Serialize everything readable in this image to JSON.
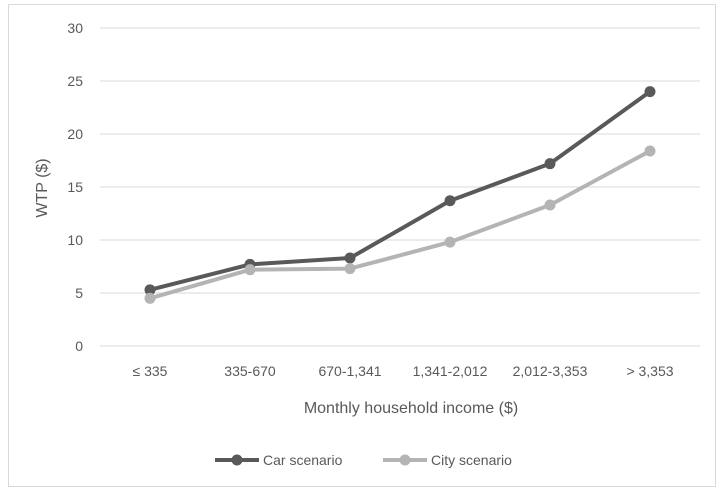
{
  "chart_data": {
    "type": "line",
    "title": "",
    "xlabel": "Monthly household income ($)",
    "ylabel": "WTP ($)",
    "categories": [
      "≤ 335",
      "335-670",
      "670-1,341",
      "1,341-2,012",
      "2,012-3,353",
      "> 3,353"
    ],
    "ylim": [
      0,
      30
    ],
    "yticks": [
      0,
      5,
      10,
      15,
      20,
      25,
      30
    ],
    "grid": true,
    "legend_position": "bottom",
    "series": [
      {
        "name": "Car scenario",
        "color": "#595959",
        "values": [
          5.3,
          7.7,
          8.3,
          13.7,
          17.2,
          24.0
        ]
      },
      {
        "name": "City scenario",
        "color": "#b4b4b4",
        "values": [
          4.5,
          7.2,
          7.3,
          9.8,
          13.3,
          18.4
        ]
      }
    ]
  }
}
